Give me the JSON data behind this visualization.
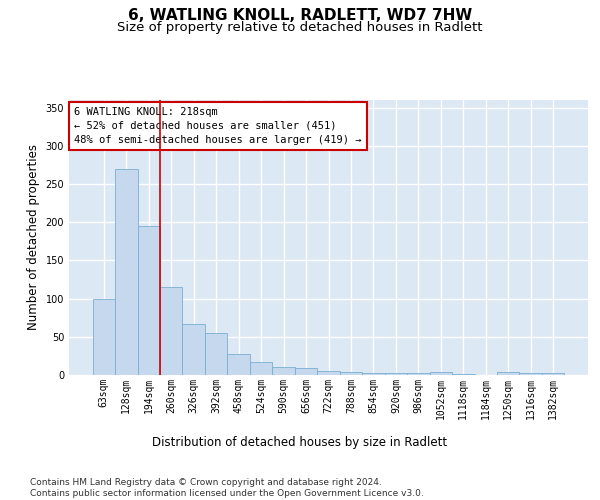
{
  "title_line1": "6, WATLING KNOLL, RADLETT, WD7 7HW",
  "title_line2": "Size of property relative to detached houses in Radlett",
  "xlabel": "Distribution of detached houses by size in Radlett",
  "ylabel": "Number of detached properties",
  "bar_labels": [
    "63sqm",
    "128sqm",
    "194sqm",
    "260sqm",
    "326sqm",
    "392sqm",
    "458sqm",
    "524sqm",
    "590sqm",
    "656sqm",
    "722sqm",
    "788sqm",
    "854sqm",
    "920sqm",
    "986sqm",
    "1052sqm",
    "1118sqm",
    "1184sqm",
    "1250sqm",
    "1316sqm",
    "1382sqm"
  ],
  "bar_values": [
    100,
    270,
    195,
    115,
    67,
    55,
    27,
    17,
    10,
    9,
    5,
    4,
    3,
    3,
    2,
    4,
    1,
    0,
    4,
    2,
    2
  ],
  "bar_color": "#c5d8ed",
  "bar_edge_color": "#7aaed1",
  "background_color": "#dde8f5",
  "grid_color": "#ffffff",
  "annotation_text": "6 WATLING KNOLL: 218sqm\n← 52% of detached houses are smaller (451)\n48% of semi-detached houses are larger (419) →",
  "annotation_box_color": "#ffffff",
  "annotation_box_edge_color": "#cc0000",
  "red_line_bar_index": 2,
  "ylim": [
    0,
    360
  ],
  "yticks": [
    0,
    50,
    100,
    150,
    200,
    250,
    300,
    350
  ],
  "footer_text": "Contains HM Land Registry data © Crown copyright and database right 2024.\nContains public sector information licensed under the Open Government Licence v3.0.",
  "title_fontsize": 11,
  "subtitle_fontsize": 9.5,
  "axis_label_fontsize": 8.5,
  "tick_fontsize": 7,
  "annotation_fontsize": 7.5,
  "footer_fontsize": 6.5
}
